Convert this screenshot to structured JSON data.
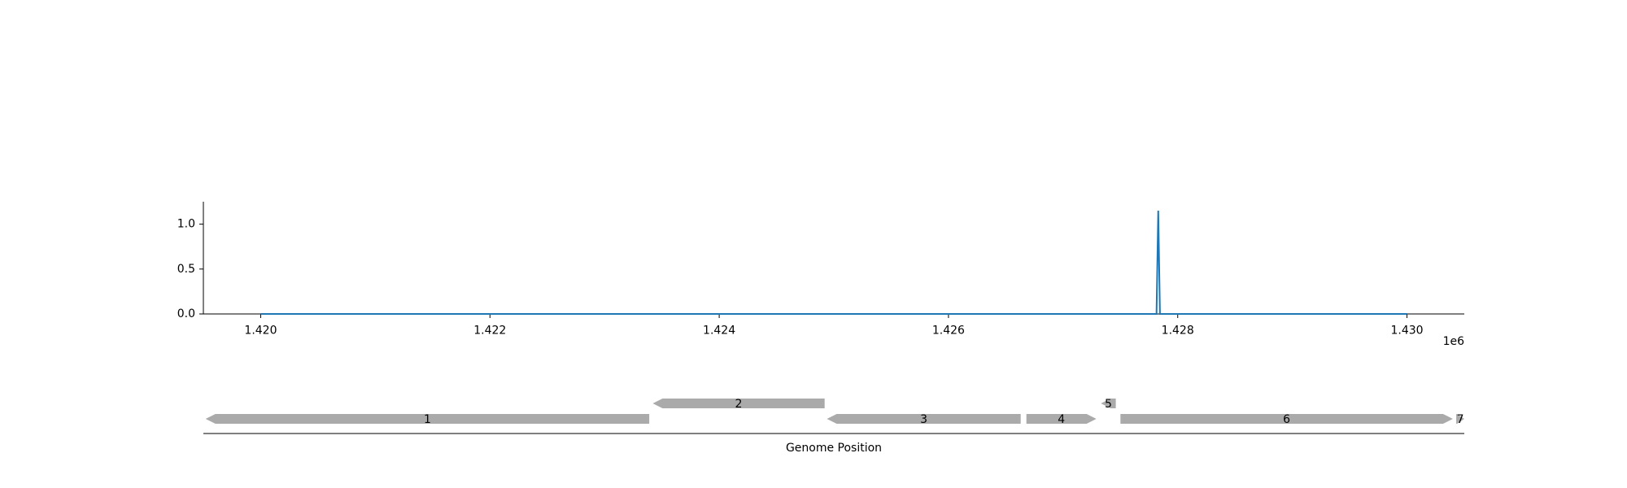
{
  "chart_data": [
    {
      "type": "line",
      "x": [
        1420000,
        1427815,
        1427830,
        1427845,
        1430000
      ],
      "y": [
        0.0,
        0.0,
        1.15,
        0.0,
        0.0
      ],
      "xlim": [
        1419500,
        1430500
      ],
      "ylim": [
        0.0,
        1.25
      ],
      "xticks": [
        1420000,
        1422000,
        1424000,
        1426000,
        1428000,
        1430000
      ],
      "xtick_labels": [
        "1.420",
        "1.422",
        "1.424",
        "1.426",
        "1.428",
        "1.430"
      ],
      "x_offset_label": "1e6",
      "yticks": [
        0.0,
        0.5,
        1.0
      ],
      "ytick_labels": [
        "0.0",
        "0.5",
        "1.0"
      ],
      "line_color": "#1f77b4",
      "grid": false
    },
    {
      "type": "gene_map",
      "xlabel": "Genome Position",
      "xlim": [
        1419500,
        1430500
      ],
      "feature_color": "#aaaaaa",
      "features": [
        {
          "label": "1",
          "start": 1419520,
          "end": 1423390,
          "strand": -1,
          "level": 0
        },
        {
          "label": "2",
          "start": 1423420,
          "end": 1424920,
          "strand": -1,
          "level": 1
        },
        {
          "label": "3",
          "start": 1424940,
          "end": 1426630,
          "strand": -1,
          "level": 0
        },
        {
          "label": "4",
          "start": 1426680,
          "end": 1427290,
          "strand": 1,
          "level": 0
        },
        {
          "label": "5",
          "start": 1427330,
          "end": 1427460,
          "strand": -1,
          "level": 1
        },
        {
          "label": "6",
          "start": 1427500,
          "end": 1430400,
          "strand": 1,
          "level": 0
        },
        {
          "label": "7",
          "start": 1430430,
          "end": 1430500,
          "strand": 1,
          "level": 0
        }
      ]
    }
  ]
}
